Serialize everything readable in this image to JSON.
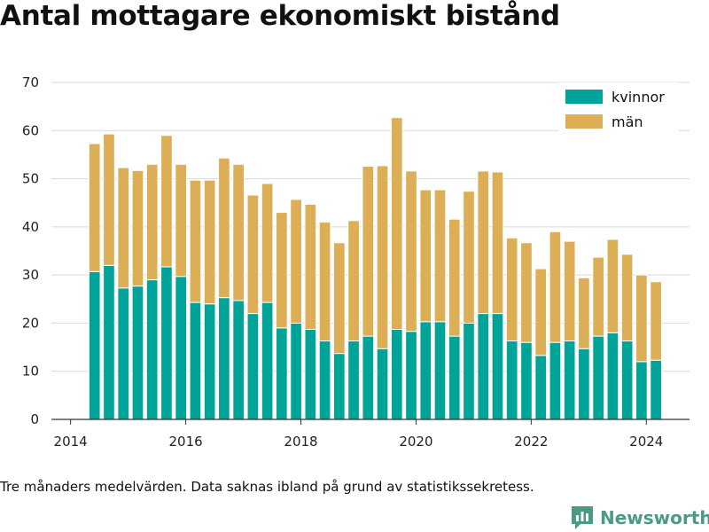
{
  "title": "Antal mottagare ekonomiskt bistånd",
  "footnote": "Tre månaders medelvärden. Data saknas ibland på grund av statistikssekretess.",
  "brand": {
    "name": "Newsworthy",
    "icon": "newsworthy-logo-icon"
  },
  "colors": {
    "women": "#00a398",
    "men": "#dcae55",
    "grid": "#d9d9d9",
    "axis": "#333333",
    "brand": "#4a9a86"
  },
  "chart_data": {
    "type": "bar",
    "stacked": true,
    "title": "Antal mottagare ekonomiskt bistånd",
    "xlabel": "",
    "ylabel": "",
    "ylim": [
      0,
      70
    ],
    "xlim": [
      "2013-09-01",
      "2024-10-01"
    ],
    "grid": true,
    "legend_position": "top-right",
    "y_ticks": [
      "0",
      "10",
      "20",
      "30",
      "40",
      "50",
      "60",
      "70"
    ],
    "x_ticks": [
      "2014",
      "2016",
      "2018",
      "2020",
      "2022",
      "2024"
    ],
    "x": [
      "2014-06",
      "2014-09",
      "2014-12",
      "2015-03",
      "2015-06",
      "2015-09",
      "2015-12",
      "2016-03",
      "2016-06",
      "2016-09",
      "2016-12",
      "2017-03",
      "2017-06",
      "2017-09",
      "2017-12",
      "2018-03",
      "2018-06",
      "2018-09",
      "2018-12",
      "2019-03",
      "2019-06",
      "2019-09",
      "2019-12",
      "2020-03",
      "2020-06",
      "2020-09",
      "2020-12",
      "2021-03",
      "2021-06",
      "2021-09",
      "2021-12",
      "2022-03",
      "2022-06",
      "2022-09",
      "2022-12",
      "2023-03",
      "2023-06",
      "2023-09",
      "2023-12",
      "2024-03"
    ],
    "series": [
      {
        "name": "kvinnor",
        "values": [
          30.7,
          32.0,
          27.3,
          27.7,
          29.0,
          31.7,
          29.7,
          24.3,
          24.0,
          25.3,
          24.7,
          22.0,
          24.3,
          19.0,
          20.0,
          18.7,
          16.3,
          13.7,
          16.3,
          17.3,
          14.7,
          18.7,
          18.3,
          20.3,
          20.3,
          17.3,
          20.0,
          22.0,
          22.0,
          16.3,
          16.0,
          13.3,
          16.0,
          16.3,
          14.7,
          17.3,
          18.0,
          16.3,
          12.0,
          12.3
        ]
      },
      {
        "name": "män",
        "values": [
          26.6,
          27.3,
          25.0,
          24.0,
          24.0,
          27.3,
          23.3,
          25.4,
          25.7,
          29.0,
          28.3,
          24.6,
          24.7,
          24.0,
          25.7,
          26.0,
          24.7,
          23.0,
          25.0,
          35.3,
          38.0,
          44.0,
          33.3,
          27.4,
          27.4,
          24.3,
          27.4,
          29.6,
          29.4,
          21.4,
          20.7,
          18.0,
          23.0,
          20.7,
          14.7,
          16.4,
          19.4,
          18.0,
          18.0,
          16.3
        ]
      }
    ]
  }
}
